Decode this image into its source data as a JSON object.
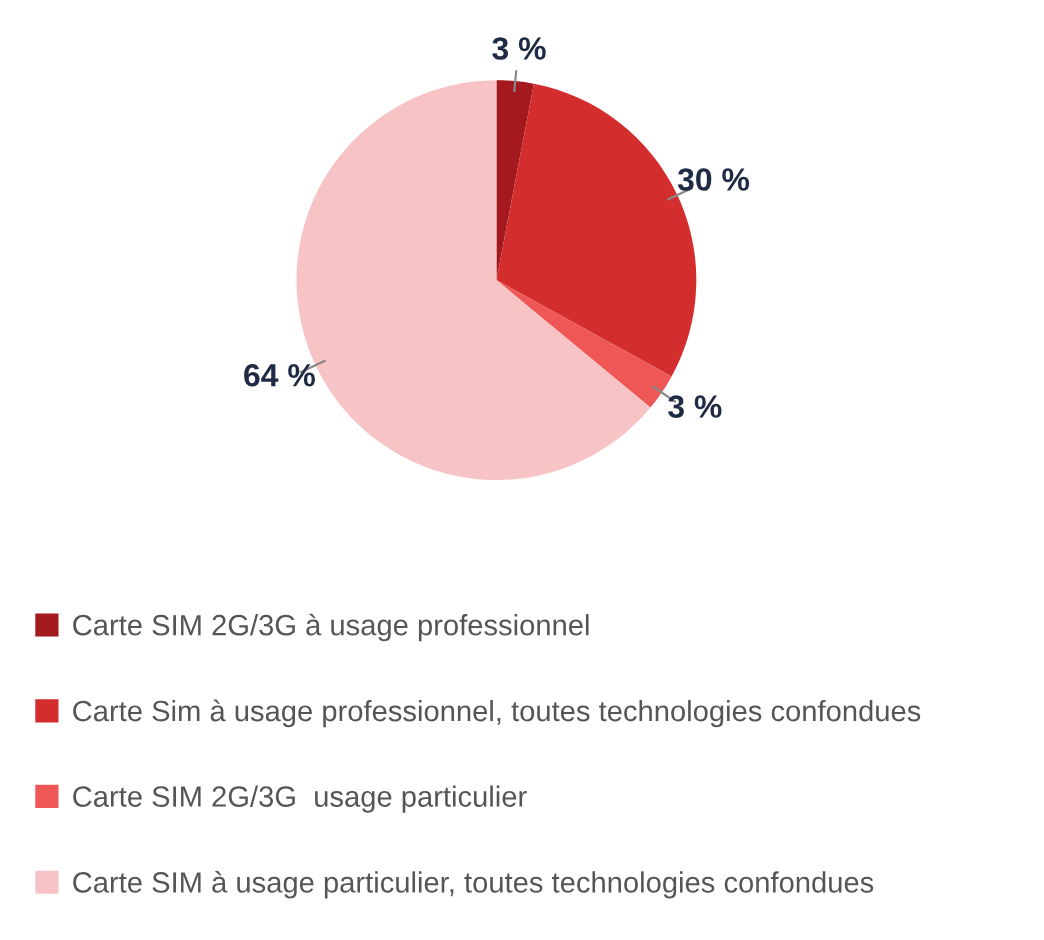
{
  "chart_data": {
    "type": "pie",
    "categories": [
      "Carte SIM 2G/3G à usage professionnel",
      "Carte Sim à usage professionnel, toutes technologies confondues",
      "Carte SIM 2G/3G  usage particulier",
      "Carte SIM à usage particulier, toutes technologies confondues"
    ],
    "values": [
      3,
      30,
      3,
      64
    ],
    "colors": [
      "#a3191e",
      "#d42d2e",
      "#ef5656",
      "#f7c3c4"
    ],
    "value_labels": [
      "3 %",
      "30 %",
      "3 %",
      "64 %"
    ],
    "legend": "bottom"
  }
}
